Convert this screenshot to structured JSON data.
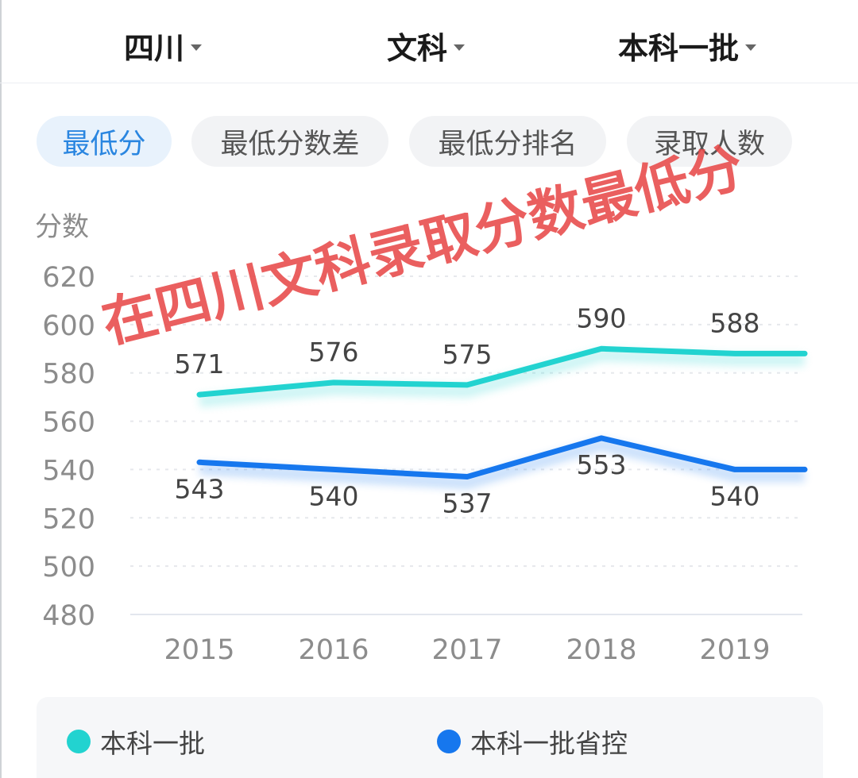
{
  "filters": {
    "province": "四川",
    "subject": "文科",
    "batch": "本科一批"
  },
  "tabs": [
    {
      "label": "最低分",
      "active": true
    },
    {
      "label": "最低分数差",
      "active": false
    },
    {
      "label": "最低分排名",
      "active": false
    },
    {
      "label": "录取人数",
      "active": false
    }
  ],
  "watermark": "在四川文科录取分数最低分",
  "colors": {
    "accent": "#2a86e0",
    "series1": "#22d3d0",
    "series2": "#1677ee",
    "watermark": "#e84a4a"
  },
  "chart_data": {
    "type": "line",
    "ylabel": "分数",
    "categories": [
      "2015",
      "2016",
      "2017",
      "2018",
      "2019"
    ],
    "yticks": [
      620,
      600,
      580,
      560,
      540,
      520,
      500,
      480
    ],
    "ylim": [
      480,
      620
    ],
    "grid": true,
    "legend_position": "bottom",
    "series": [
      {
        "name": "本科一批",
        "values": [
          571,
          576,
          575,
          590,
          588
        ],
        "color": "#22d3d0",
        "label_position": "above"
      },
      {
        "name": "本科一批省控",
        "values": [
          543,
          540,
          537,
          553,
          540
        ],
        "color": "#1677ee",
        "label_position": "below"
      }
    ]
  }
}
